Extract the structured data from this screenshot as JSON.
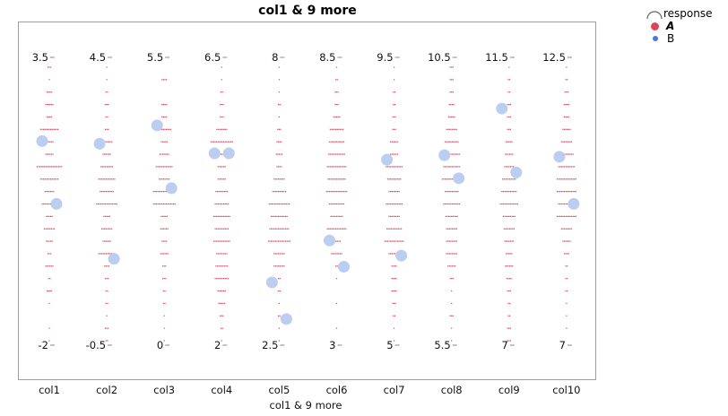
{
  "chart_data": {
    "type": "scatter",
    "title": "col1 & 9 more",
    "xlabel": "col1 & 9 more",
    "legend": {
      "title": "response",
      "placement": "top-right",
      "entries": [
        {
          "name": "A",
          "color": "#d9465c"
        },
        {
          "name": "B",
          "color": "#4a78e0"
        }
      ]
    },
    "b_point_color": "#bccdf2",
    "columns": [
      {
        "name": "col1",
        "min": -2,
        "max": 3.5,
        "min_label": "-2",
        "max_label": "3.5",
        "a_counts": [
          3,
          1,
          4,
          6,
          4,
          13,
          6,
          6,
          18,
          13,
          7,
          11,
          5,
          8,
          5,
          3,
          6,
          2,
          4,
          1,
          0,
          1,
          1
        ],
        "b_values": [
          1.9,
          0.7
        ]
      },
      {
        "name": "col2",
        "min": -0.5,
        "max": 4.5,
        "min_label": "-0.5",
        "max_label": "4.5",
        "a_counts": [
          1,
          1,
          2,
          3,
          2,
          3,
          8,
          6,
          9,
          12,
          10,
          15,
          5,
          8,
          6,
          12,
          4,
          3,
          2,
          2,
          1,
          3,
          2
        ],
        "b_values": [
          3.0,
          1.0
        ]
      },
      {
        "name": "col3",
        "min": 0,
        "max": 5.5,
        "min_label": "0",
        "max_label": "5.5",
        "a_counts": [
          0,
          4,
          0,
          4,
          4,
          10,
          5,
          7,
          12,
          8,
          16,
          16,
          5,
          6,
          4,
          6,
          3,
          3,
          2,
          2,
          1,
          1,
          1
        ],
        "b_values": [
          4.2,
          3.0
        ]
      },
      {
        "name": "col4",
        "min": 2,
        "max": 6.5,
        "min_label": "2",
        "max_label": "6.5",
        "a_counts": [
          1,
          1,
          2,
          3,
          3,
          8,
          16,
          8,
          6,
          6,
          9,
          10,
          12,
          10,
          12,
          8,
          9,
          10,
          6,
          5,
          3,
          2,
          1
        ],
        "b_values": [
          5.0,
          5.0
        ]
      },
      {
        "name": "col5",
        "min": 2.5,
        "max": 8,
        "min_label": "2.5",
        "max_label": "8",
        "a_counts": [
          1,
          1,
          1,
          2,
          1,
          3,
          4,
          5,
          4,
          8,
          10,
          15,
          12,
          14,
          16,
          8,
          8,
          2,
          2,
          1,
          2,
          1,
          1
        ],
        "b_values": [
          3.7,
          3.0
        ]
      },
      {
        "name": "col6",
        "min": 3,
        "max": 8.5,
        "min_label": "3",
        "max_label": "8.5",
        "a_counts": [
          1,
          2,
          3,
          3,
          5,
          10,
          11,
          12,
          14,
          13,
          15,
          11,
          9,
          14,
          6,
          8,
          2,
          1,
          0,
          1,
          0,
          1,
          0
        ],
        "b_values": [
          5.0,
          4.5
        ]
      },
      {
        "name": "col7",
        "min": 5,
        "max": 9.5,
        "min_label": "5",
        "max_label": "9.5",
        "a_counts": [
          1,
          1,
          2,
          2,
          3,
          3,
          6,
          6,
          12,
          10,
          8,
          12,
          8,
          11,
          14,
          8,
          4,
          4,
          4,
          3,
          2,
          1,
          1
        ],
        "b_values": [
          7.9,
          6.4
        ]
      },
      {
        "name": "col8",
        "min": 5.5,
        "max": 10.5,
        "min_label": "5.5",
        "max_label": "10.5",
        "a_counts": [
          3,
          3,
          3,
          4,
          5,
          8,
          10,
          12,
          12,
          14,
          10,
          12,
          9,
          8,
          8,
          8,
          6,
          3,
          1,
          1,
          3,
          1,
          1
        ],
        "b_values": [
          8.8,
          8.4
        ]
      },
      {
        "name": "col9",
        "min": 7,
        "max": 11.5,
        "min_label": "7",
        "max_label": "11.5",
        "a_counts": [
          1,
          2,
          2,
          3,
          3,
          3,
          5,
          6,
          7,
          10,
          11,
          13,
          9,
          8,
          7,
          5,
          6,
          4,
          3,
          2,
          2,
          3,
          3
        ],
        "b_values": [
          10.7,
          9.7
        ]
      },
      {
        "name": "col10",
        "min": 7,
        "max": 12.5,
        "min_label": "7",
        "max_label": "12.5",
        "a_counts": [
          1,
          2,
          3,
          4,
          4,
          6,
          8,
          10,
          12,
          14,
          14,
          12,
          14,
          8,
          6,
          4,
          2,
          2,
          2,
          1,
          1,
          1,
          0
        ],
        "b_values": [
          10.6,
          9.7
        ]
      }
    ]
  }
}
